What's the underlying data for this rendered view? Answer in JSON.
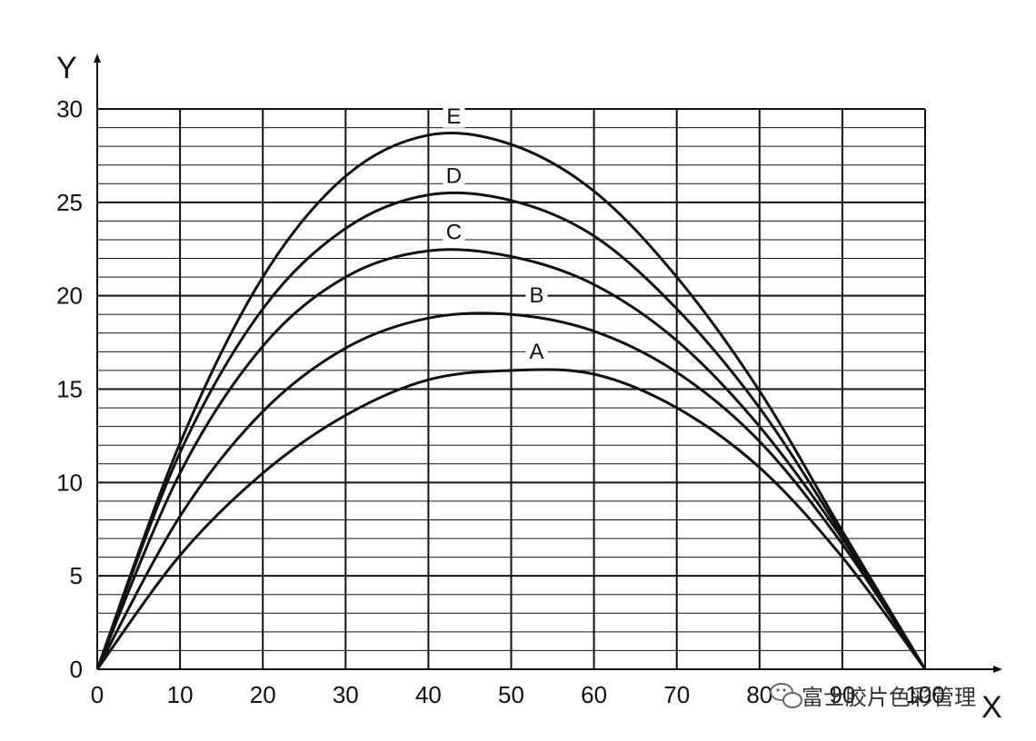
{
  "chart_data": {
    "type": "line",
    "xlabel": "X",
    "ylabel": "Y",
    "xlim": [
      0,
      100
    ],
    "ylim": [
      0,
      30
    ],
    "x_ticks": [
      "0",
      "10",
      "20",
      "30",
      "40",
      "50",
      "60",
      "70",
      "80",
      "90",
      "100"
    ],
    "y_ticks": [
      "0",
      "5",
      "10",
      "15",
      "20",
      "25",
      "30"
    ],
    "grid": true,
    "x": [
      0,
      10,
      20,
      30,
      40,
      50,
      60,
      70,
      80,
      90,
      100
    ],
    "series": [
      {
        "name": "A",
        "values": [
          0,
          6.1,
          10.5,
          13.6,
          15.5,
          16.0,
          15.8,
          14.0,
          10.8,
          6.0,
          0
        ]
      },
      {
        "name": "B",
        "values": [
          0,
          8.2,
          13.8,
          17.2,
          18.8,
          19.0,
          18.1,
          15.9,
          12.2,
          6.7,
          0
        ]
      },
      {
        "name": "C",
        "values": [
          0,
          10.5,
          17.3,
          21.0,
          22.4,
          22.1,
          20.6,
          17.6,
          13.0,
          7.0,
          0
        ]
      },
      {
        "name": "D",
        "values": [
          0,
          11.6,
          19.3,
          23.6,
          25.4,
          25.1,
          23.2,
          19.3,
          14.0,
          7.2,
          0
        ]
      },
      {
        "name": "E",
        "values": [
          0,
          12.1,
          21.0,
          26.4,
          28.6,
          28.1,
          25.6,
          21.0,
          14.9,
          7.4,
          0
        ]
      }
    ]
  },
  "watermark": {
    "text": "富士胶片色彩管理",
    "icon": "wechat-icon"
  }
}
